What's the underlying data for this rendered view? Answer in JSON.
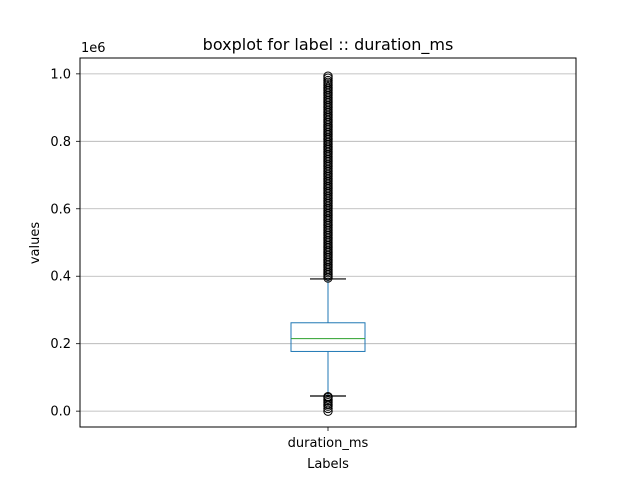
{
  "chart_data": {
    "type": "boxplot",
    "title": "boxplot for label :: duration_ms",
    "xlabel": "Labels",
    "ylabel": "values",
    "y_offset_label": "1e6",
    "y_scale": 1000000,
    "ylim": [
      -47000,
      1047000
    ],
    "grid": "y",
    "categories": [
      "duration_ms"
    ],
    "y_ticks": [
      0,
      200000,
      400000,
      600000,
      800000,
      1000000
    ],
    "y_tick_labels": [
      "0.0",
      "0.2",
      "0.4",
      "0.6",
      "0.8",
      "1.0"
    ],
    "boxes": [
      {
        "name": "duration_ms",
        "whisker_low": 45000,
        "q1": 177000,
        "median": 215000,
        "q3": 262000,
        "whisker_high": 392000,
        "fliers_low": [
          0,
          8000,
          15000,
          20000,
          25000,
          30000,
          35000,
          40000,
          43000
        ],
        "fliers_high": [
          395000,
          400000,
          405000,
          410000,
          415000,
          420000,
          425000,
          430000,
          435000,
          440000,
          445000,
          450000,
          455000,
          460000,
          465000,
          470000,
          475000,
          480000,
          485000,
          490000,
          495000,
          500000,
          505000,
          510000,
          515000,
          520000,
          525000,
          530000,
          535000,
          540000,
          545000,
          550000,
          555000,
          560000,
          565000,
          570000,
          575000,
          580000,
          585000,
          590000,
          595000,
          600000,
          605000,
          610000,
          615000,
          620000,
          625000,
          630000,
          635000,
          640000,
          645000,
          650000,
          655000,
          660000,
          665000,
          670000,
          675000,
          680000,
          685000,
          690000,
          695000,
          700000,
          705000,
          710000,
          715000,
          720000,
          725000,
          730000,
          735000,
          740000,
          745000,
          750000,
          755000,
          760000,
          765000,
          770000,
          775000,
          780000,
          785000,
          790000,
          795000,
          800000,
          805000,
          810000,
          815000,
          820000,
          825000,
          830000,
          835000,
          840000,
          845000,
          850000,
          855000,
          860000,
          865000,
          870000,
          875000,
          880000,
          885000,
          890000,
          895000,
          900000,
          905000,
          910000,
          915000,
          920000,
          925000,
          930000,
          935000,
          940000,
          945000,
          950000,
          955000,
          960000,
          965000,
          970000,
          975000,
          980000,
          987000,
          993000
        ]
      }
    ],
    "colors": {
      "box": "#1f77b4",
      "median": "#2ca02c",
      "whisker": "#1f77b4",
      "cap": "#000000",
      "flier": "#000000",
      "grid": "#b0b0b0"
    }
  }
}
